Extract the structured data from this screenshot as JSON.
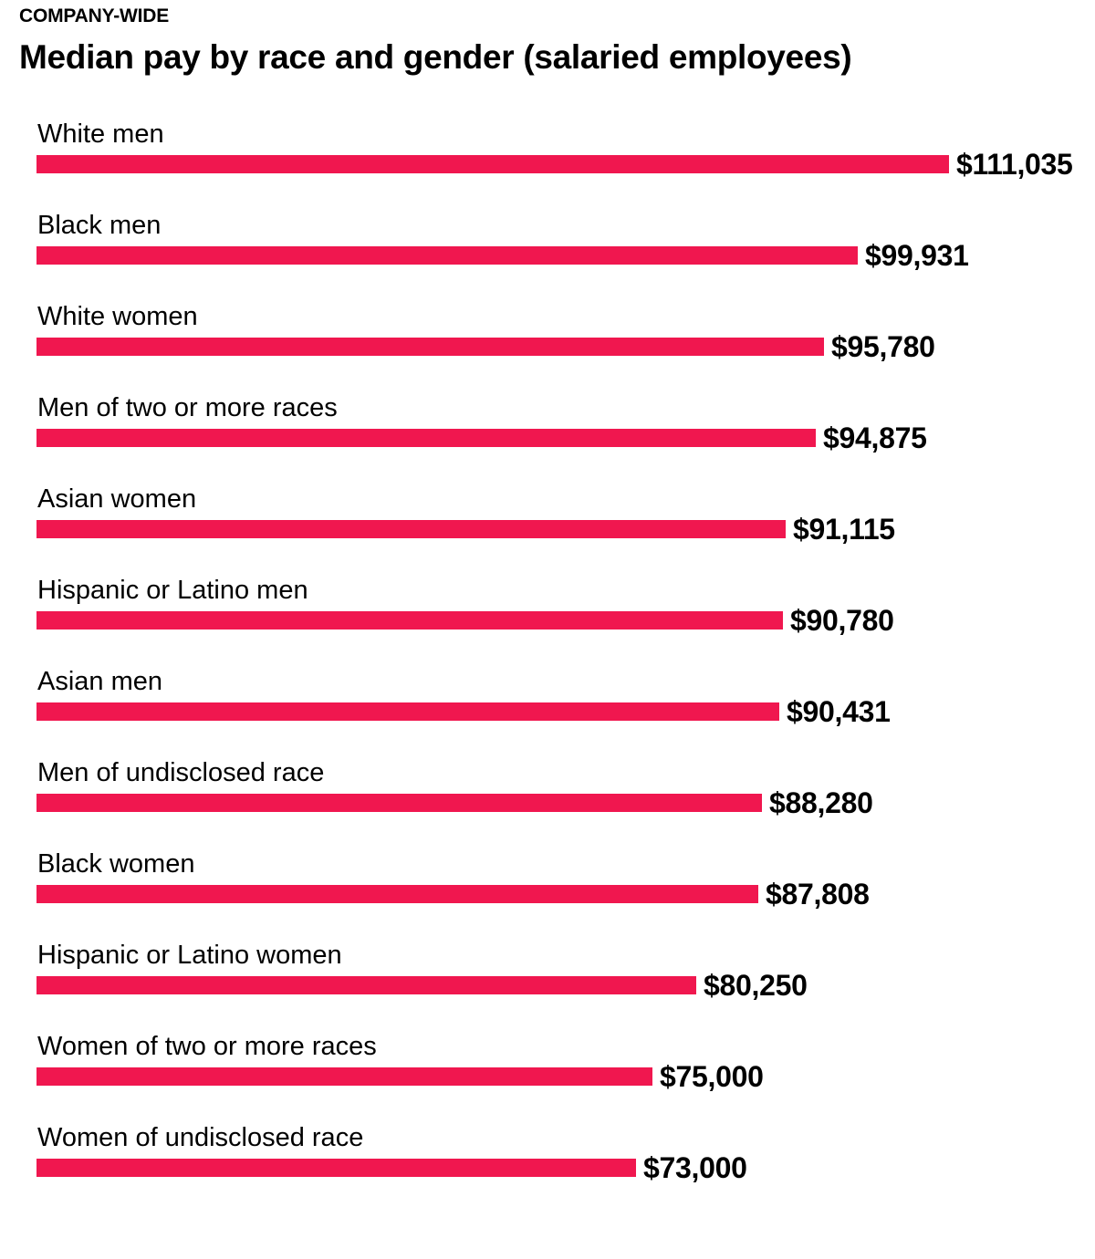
{
  "header": {
    "kicker": "COMPANY-WIDE",
    "title": "Median pay by race and gender (salaried employees)"
  },
  "colors": {
    "bar": "#f0174f",
    "text": "#000000"
  },
  "chart_data": {
    "type": "bar",
    "orientation": "horizontal",
    "title": "Median pay by race and gender (salaried employees)",
    "subtitle": "COMPANY-WIDE",
    "xlabel": "",
    "ylabel": "",
    "xlim": [
      0,
      111035
    ],
    "grid": false,
    "categories": [
      "White men",
      "Black men",
      "White women",
      "Men of two or more races",
      "Asian women",
      "Hispanic or Latino men",
      "Asian men",
      "Men of undisclosed race",
      "Black women",
      "Hispanic or Latino women",
      "Women of two or more races",
      "Women of undisclosed race"
    ],
    "values": [
      111035,
      99931,
      95780,
      94875,
      91115,
      90780,
      90431,
      88280,
      87808,
      80250,
      75000,
      73000
    ],
    "value_labels": [
      "$111,035",
      "$99,931",
      "$95,780",
      "$94,875",
      "$91,115",
      "$90,780",
      "$90,431",
      "$88,280",
      "$87,808",
      "$80,250",
      "$75,000",
      "$73,000"
    ]
  }
}
